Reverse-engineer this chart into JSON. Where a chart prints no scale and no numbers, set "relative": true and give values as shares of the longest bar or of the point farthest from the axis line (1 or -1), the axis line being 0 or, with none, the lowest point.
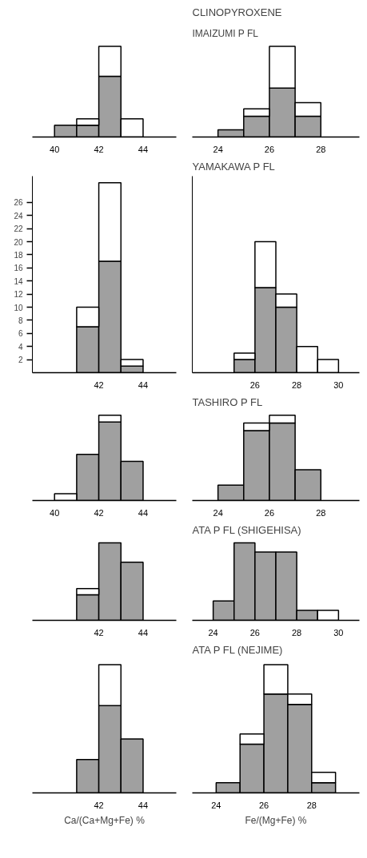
{
  "chart_data": [
    {
      "type": "bar",
      "relative": true,
      "x": [
        40.5,
        41.5,
        42.5,
        43.5
      ],
      "stacked": true,
      "xlim": [
        39,
        45.5
      ],
      "xticks": [
        40,
        42,
        44
      ],
      "tick_labels": "x",
      "grid": false,
      "series": [
        {
          "color": "#a0a0a0",
          "values": [
            0.13,
            0.13,
            0.67,
            null
          ]
        },
        {
          "color": "#ffffff",
          "values": [
            null,
            0.07,
            0.33,
            0.2
          ]
        }
      ]
    },
    {
      "type": "bar",
      "relative": true,
      "title": "CLINOPYROXENE",
      "subtitle": "IMAIZUMI P FL",
      "x": [
        24.5,
        25.5,
        26.5,
        27.5
      ],
      "stacked": true,
      "xlim": [
        23,
        29.5
      ],
      "xticks": [
        24,
        26,
        28
      ],
      "tick_labels": "x",
      "grid": false,
      "series": [
        {
          "color": "#a0a0a0",
          "values": [
            0.08,
            0.23,
            0.54,
            0.23
          ]
        },
        {
          "color": "#ffffff",
          "values": [
            null,
            0.08,
            0.46,
            0.15
          ]
        }
      ]
    },
    {
      "type": "bar",
      "x": [
        41.5,
        42.5,
        43.5
      ],
      "stacked": true,
      "xlim": [
        39,
        45.5
      ],
      "xticks": [
        42,
        44
      ],
      "ylim": [
        0,
        30
      ],
      "yticks": [
        2,
        4,
        6,
        8,
        10,
        12,
        14,
        16,
        18,
        20,
        22,
        24,
        26
      ],
      "grid": false,
      "series": [
        {
          "color": "#a0a0a0",
          "values": [
            7,
            17,
            1
          ]
        },
        {
          "color": "#ffffff",
          "values": [
            3,
            12,
            1
          ]
        }
      ]
    },
    {
      "type": "bar",
      "title": "YAMAKAWA P FL",
      "x": [
        25.5,
        26.5,
        27.5,
        28.5,
        29.5
      ],
      "stacked": true,
      "xlim": [
        23,
        31
      ],
      "xticks": [
        26,
        28,
        30
      ],
      "ylim": [
        0,
        30
      ],
      "tick_labels": "x",
      "grid": false,
      "series": [
        {
          "color": "#a0a0a0",
          "values": [
            2,
            13,
            10,
            null,
            null
          ]
        },
        {
          "color": "#ffffff",
          "values": [
            1,
            7,
            2,
            4,
            2
          ]
        }
      ]
    },
    {
      "type": "bar",
      "relative": true,
      "x": [
        40.5,
        41.5,
        42.5,
        43.5
      ],
      "stacked": true,
      "xlim": [
        39,
        45.5
      ],
      "xticks": [
        40,
        42,
        44
      ],
      "tick_labels": "x",
      "grid": false,
      "series": [
        {
          "color": "#a0a0a0",
          "values": [
            null,
            0.54,
            0.92,
            0.46
          ]
        },
        {
          "color": "#ffffff",
          "values": [
            0.08,
            null,
            0.08,
            null
          ]
        }
      ]
    },
    {
      "type": "bar",
      "relative": true,
      "title": "TASHIRO P FL",
      "x": [
        24.5,
        25.5,
        26.5,
        27.5
      ],
      "stacked": true,
      "xlim": [
        23,
        29.5
      ],
      "xticks": [
        24,
        26,
        28
      ],
      "tick_labels": "x",
      "grid": false,
      "series": [
        {
          "color": "#a0a0a0",
          "values": [
            0.18,
            0.82,
            0.91,
            0.36
          ]
        },
        {
          "color": "#ffffff",
          "values": [
            null,
            0.09,
            0.09,
            null
          ]
        }
      ]
    },
    {
      "type": "bar",
      "relative": true,
      "x": [
        41.5,
        42.5,
        43.5
      ],
      "stacked": true,
      "xlim": [
        39,
        45.5
      ],
      "xticks": [
        42,
        44
      ],
      "tick_labels": "x",
      "grid": false,
      "series": [
        {
          "color": "#a0a0a0",
          "values": [
            0.33,
            1,
            0.75
          ]
        },
        {
          "color": "#ffffff",
          "values": [
            0.08,
            null,
            null
          ]
        }
      ]
    },
    {
      "type": "bar",
      "relative": true,
      "title": "ATA P FL (SHIGEHISA)",
      "x": [
        24.5,
        25.5,
        26.5,
        27.5,
        28.5,
        29.5
      ],
      "stacked": true,
      "xlim": [
        23,
        31
      ],
      "xticks": [
        24,
        26,
        28,
        30
      ],
      "tick_labels": "x",
      "grid": false,
      "series": [
        {
          "color": "#a0a0a0",
          "values": [
            0.25,
            1,
            0.88,
            0.88,
            0.13,
            null
          ]
        },
        {
          "color": "#ffffff",
          "values": [
            null,
            null,
            null,
            null,
            null,
            0.13
          ]
        }
      ]
    },
    {
      "type": "bar",
      "relative": true,
      "xlabel": "Ca/(Ca+Mg+Fe) %",
      "x": [
        41.5,
        42.5,
        43.5
      ],
      "stacked": true,
      "xlim": [
        39,
        45.5
      ],
      "xticks": [
        42,
        44
      ],
      "tick_labels": "x",
      "grid": false,
      "series": [
        {
          "color": "#a0a0a0",
          "values": [
            0.26,
            0.68,
            0.42
          ]
        },
        {
          "color": "#ffffff",
          "values": [
            null,
            0.32,
            null
          ]
        }
      ]
    },
    {
      "type": "bar",
      "relative": true,
      "title": "ATA P FL (NEJIME)",
      "xlabel": "Fe/(Mg+Fe) %",
      "x": [
        24.5,
        25.5,
        26.5,
        27.5,
        28.5
      ],
      "stacked": true,
      "xlim": [
        23,
        30
      ],
      "xticks": [
        24,
        26,
        28
      ],
      "tick_labels": "x",
      "grid": false,
      "series": [
        {
          "color": "#a0a0a0",
          "values": [
            0.08,
            0.38,
            0.77,
            0.69,
            0.08
          ]
        },
        {
          "color": "#ffffff",
          "values": [
            null,
            0.08,
            0.23,
            0.08,
            0.08
          ]
        }
      ]
    }
  ]
}
